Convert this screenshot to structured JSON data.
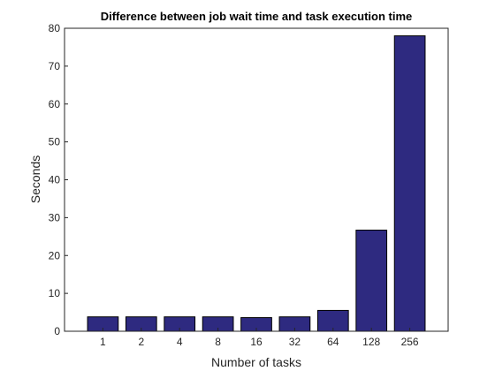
{
  "chart_data": {
    "type": "bar",
    "title": "Difference between job wait time and task execution time",
    "xlabel": "Number of tasks",
    "ylabel": "Seconds",
    "categories": [
      "1",
      "2",
      "4",
      "8",
      "16",
      "32",
      "64",
      "128",
      "256"
    ],
    "values": [
      3.8,
      3.8,
      3.8,
      3.8,
      3.6,
      3.8,
      5.5,
      26.7,
      78.0
    ],
    "ylim": [
      0,
      80
    ],
    "yticks": [
      0,
      10,
      20,
      30,
      40,
      50,
      60,
      70,
      80
    ],
    "grid": false,
    "legend": "none",
    "bar_color": "#2e2a80",
    "edge_color": "#000000"
  }
}
